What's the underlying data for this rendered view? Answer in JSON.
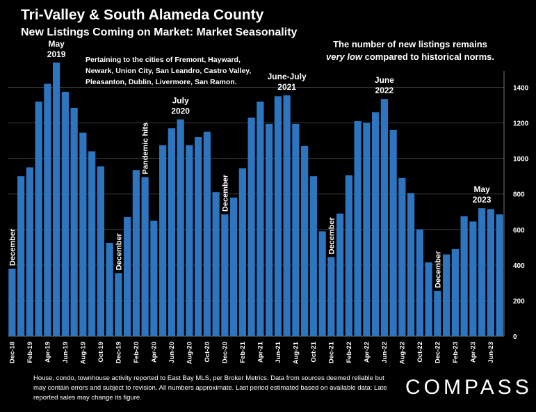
{
  "header": {
    "title": "Tri-Valley & South Alameda County",
    "subtitle": "New Listings Coming on Market: Market Seasonality"
  },
  "notes": {
    "right_line1": "The number of new listings remains",
    "right_emph": "very low",
    "right_line2_rest": " compared to historical norms.",
    "cities": "Pertaining to the cities of Fremont, Hayward, Newark, Union City, San Leandro, Castro Valley, Pleasanton, Dublin, Livermore, San Ramon."
  },
  "footer": {
    "text": "House, condo, townhouse activity reported to East Bay MLS, per Broker Metrics. Data from sources deemed reliable but may contain errors and subject to revision. All numbers approximate. Last period estimated based on available data: Late reported sales may change its figure."
  },
  "logo": {
    "text": "COMPASS"
  },
  "chart_data": {
    "type": "bar",
    "bar_color": "#2E75C0",
    "categories": [
      "Dec-18",
      "Jan-19",
      "Feb-19",
      "Mar-19",
      "Apr-19",
      "May-19",
      "Jun-19",
      "Jul-19",
      "Aug-19",
      "Sep-19",
      "Oct-19",
      "Nov-19",
      "Dec-19",
      "Jan-20",
      "Feb-20",
      "Mar-20",
      "Apr-20",
      "May-20",
      "Jun-20",
      "Jul-20",
      "Aug-20",
      "Sep-20",
      "Oct-20",
      "Nov-20",
      "Dec-20",
      "Jan-21",
      "Feb-21",
      "Mar-21",
      "Apr-21",
      "May-21",
      "Jun-21",
      "Jul-21",
      "Aug-21",
      "Sep-21",
      "Oct-21",
      "Nov-21",
      "Dec-21",
      "Jan-22",
      "Feb-22",
      "Mar-22",
      "Apr-22",
      "May-22",
      "Jun-22",
      "Jul-22",
      "Aug-22",
      "Sep-22",
      "Oct-22",
      "Nov-22",
      "Dec-22",
      "Jan-23",
      "Feb-23",
      "Mar-23",
      "Apr-23",
      "May-23",
      "Jun-23",
      "Jul-23"
    ],
    "x_tick_labels": [
      "Dec-18",
      "Feb-19",
      "Apr-19",
      "Jun-19",
      "Aug-19",
      "Oct-19",
      "Dec-19",
      "Feb-20",
      "Apr-20",
      "Jun-20",
      "Aug-20",
      "Oct-20",
      "Dec-20",
      "Feb-21",
      "Apr-21",
      "Jun-21",
      "Aug-21",
      "Oct-21",
      "Dec-21",
      "Feb-22",
      "Apr-22",
      "Jun-22",
      "Aug-22",
      "Oct-22",
      "Dec-22",
      "Feb-23",
      "Apr-23",
      "Jun-23"
    ],
    "values": [
      380,
      900,
      950,
      1320,
      1420,
      1540,
      1375,
      1285,
      1145,
      1040,
      955,
      525,
      355,
      670,
      935,
      895,
      650,
      1075,
      1170,
      1220,
      1075,
      1120,
      1150,
      810,
      685,
      780,
      945,
      1230,
      1320,
      1195,
      1350,
      1355,
      1195,
      1070,
      900,
      590,
      445,
      690,
      905,
      1210,
      1200,
      1260,
      1335,
      1160,
      890,
      805,
      600,
      415,
      255,
      460,
      490,
      675,
      645,
      720,
      715,
      685
    ],
    "ylim": [
      0,
      1500
    ],
    "y_ticks": [
      0,
      200,
      400,
      600,
      800,
      1000,
      1200,
      1400
    ],
    "grid": true,
    "annotations": [
      {
        "index": 0,
        "text": "December",
        "vertical": true
      },
      {
        "index": 5,
        "text": "May\n2019",
        "vertical": false
      },
      {
        "index": 12,
        "text": "December",
        "vertical": true
      },
      {
        "index": 15,
        "text": "Pandemic hits",
        "vertical": true
      },
      {
        "index": 19,
        "text": "July\n2020",
        "vertical": false
      },
      {
        "index": 24,
        "text": "December",
        "vertical": true
      },
      {
        "index": 31,
        "text": "June-July\n2021",
        "vertical": false
      },
      {
        "index": 36,
        "text": "December",
        "vertical": true
      },
      {
        "index": 42,
        "text": "June\n2022",
        "vertical": false
      },
      {
        "index": 48,
        "text": "December",
        "vertical": true
      },
      {
        "index": 53,
        "text": "May\n2023",
        "vertical": false
      }
    ]
  }
}
